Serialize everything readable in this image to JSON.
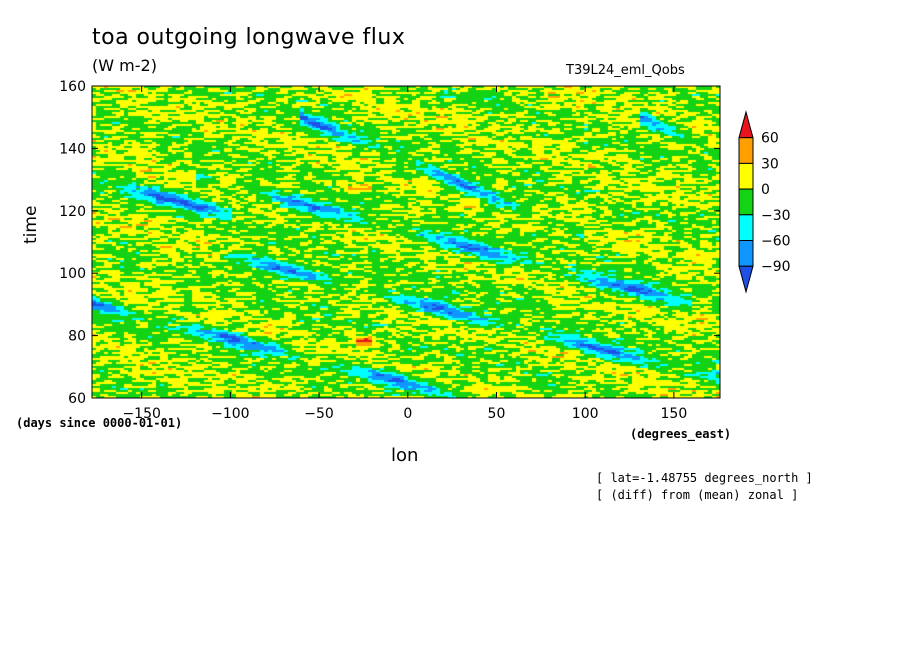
{
  "title": "toa outgoing longwave flux",
  "units": "(W m-2)",
  "experiment": "T39L24_eml_Qobs",
  "time_units": "(days since 0000-01-01)",
  "lon_units": "(degrees_east)",
  "notes": [
    "[ lat=-1.48755 degrees_north ]",
    "[ (diff) from (mean) zonal ]"
  ],
  "chart_data": {
    "type": "heatmap",
    "title": "toa outgoing longwave flux",
    "xlabel": "lon",
    "ylabel": "time",
    "xlim": [
      -178,
      176
    ],
    "ylim": [
      60,
      160
    ],
    "xticks": [
      -150,
      -100,
      -50,
      0,
      50,
      100,
      150
    ],
    "yticks": [
      60,
      80,
      100,
      120,
      140,
      160
    ],
    "colorbar": {
      "levels": [
        60,
        30,
        0,
        -30,
        -60,
        -90
      ],
      "colors": [
        "#e8141e",
        "#ff9f00",
        "#ffff00",
        "#14d214",
        "#00ffff",
        "#0f96ff",
        "#1e50e6"
      ]
    },
    "features": [
      {
        "lon": [
          -178,
          176
        ],
        "time": [
          90,
          40
        ],
        "sign": "negative"
      },
      {
        "lon": [
          -110,
          176
        ],
        "time": [
          107,
          66
        ],
        "sign": "negative"
      },
      {
        "lon": [
          -120,
          160
        ],
        "time": [
          131,
          90
        ],
        "sign": "negative"
      },
      {
        "lon": [
          -60,
          100
        ],
        "time": [
          150,
          112
        ],
        "sign": "negative"
      },
      {
        "lon": [
          -178,
          -100
        ],
        "time": [
          130,
          119
        ],
        "sign": "negative"
      },
      {
        "lon": [
          130,
          176
        ],
        "time": [
          150,
          140
        ],
        "sign": "negative"
      },
      {
        "lon": [
          -40,
          -20
        ],
        "time": [
          127.5,
          127.5
        ],
        "sign": "positive"
      },
      {
        "lon": [
          -30,
          -20
        ],
        "time": [
          78,
          78
        ],
        "sign": "positive"
      }
    ]
  }
}
